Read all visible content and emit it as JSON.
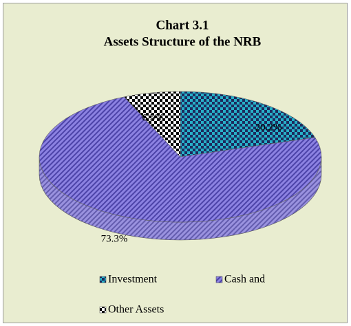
{
  "chart_data": {
    "type": "pie",
    "title": "Chart 3.1",
    "subtitle": "Assets Structure of the NRB",
    "categories": [
      "Investment",
      "Cash and",
      "Other Assets"
    ],
    "values": [
      20.2,
      73.3,
      6.5
    ],
    "value_labels": [
      "20.2%",
      "73.3%",
      "6.5%"
    ],
    "colors": [
      "#27b0c8",
      "#8c82e2",
      "#ffffff"
    ],
    "legend": "bottom"
  }
}
